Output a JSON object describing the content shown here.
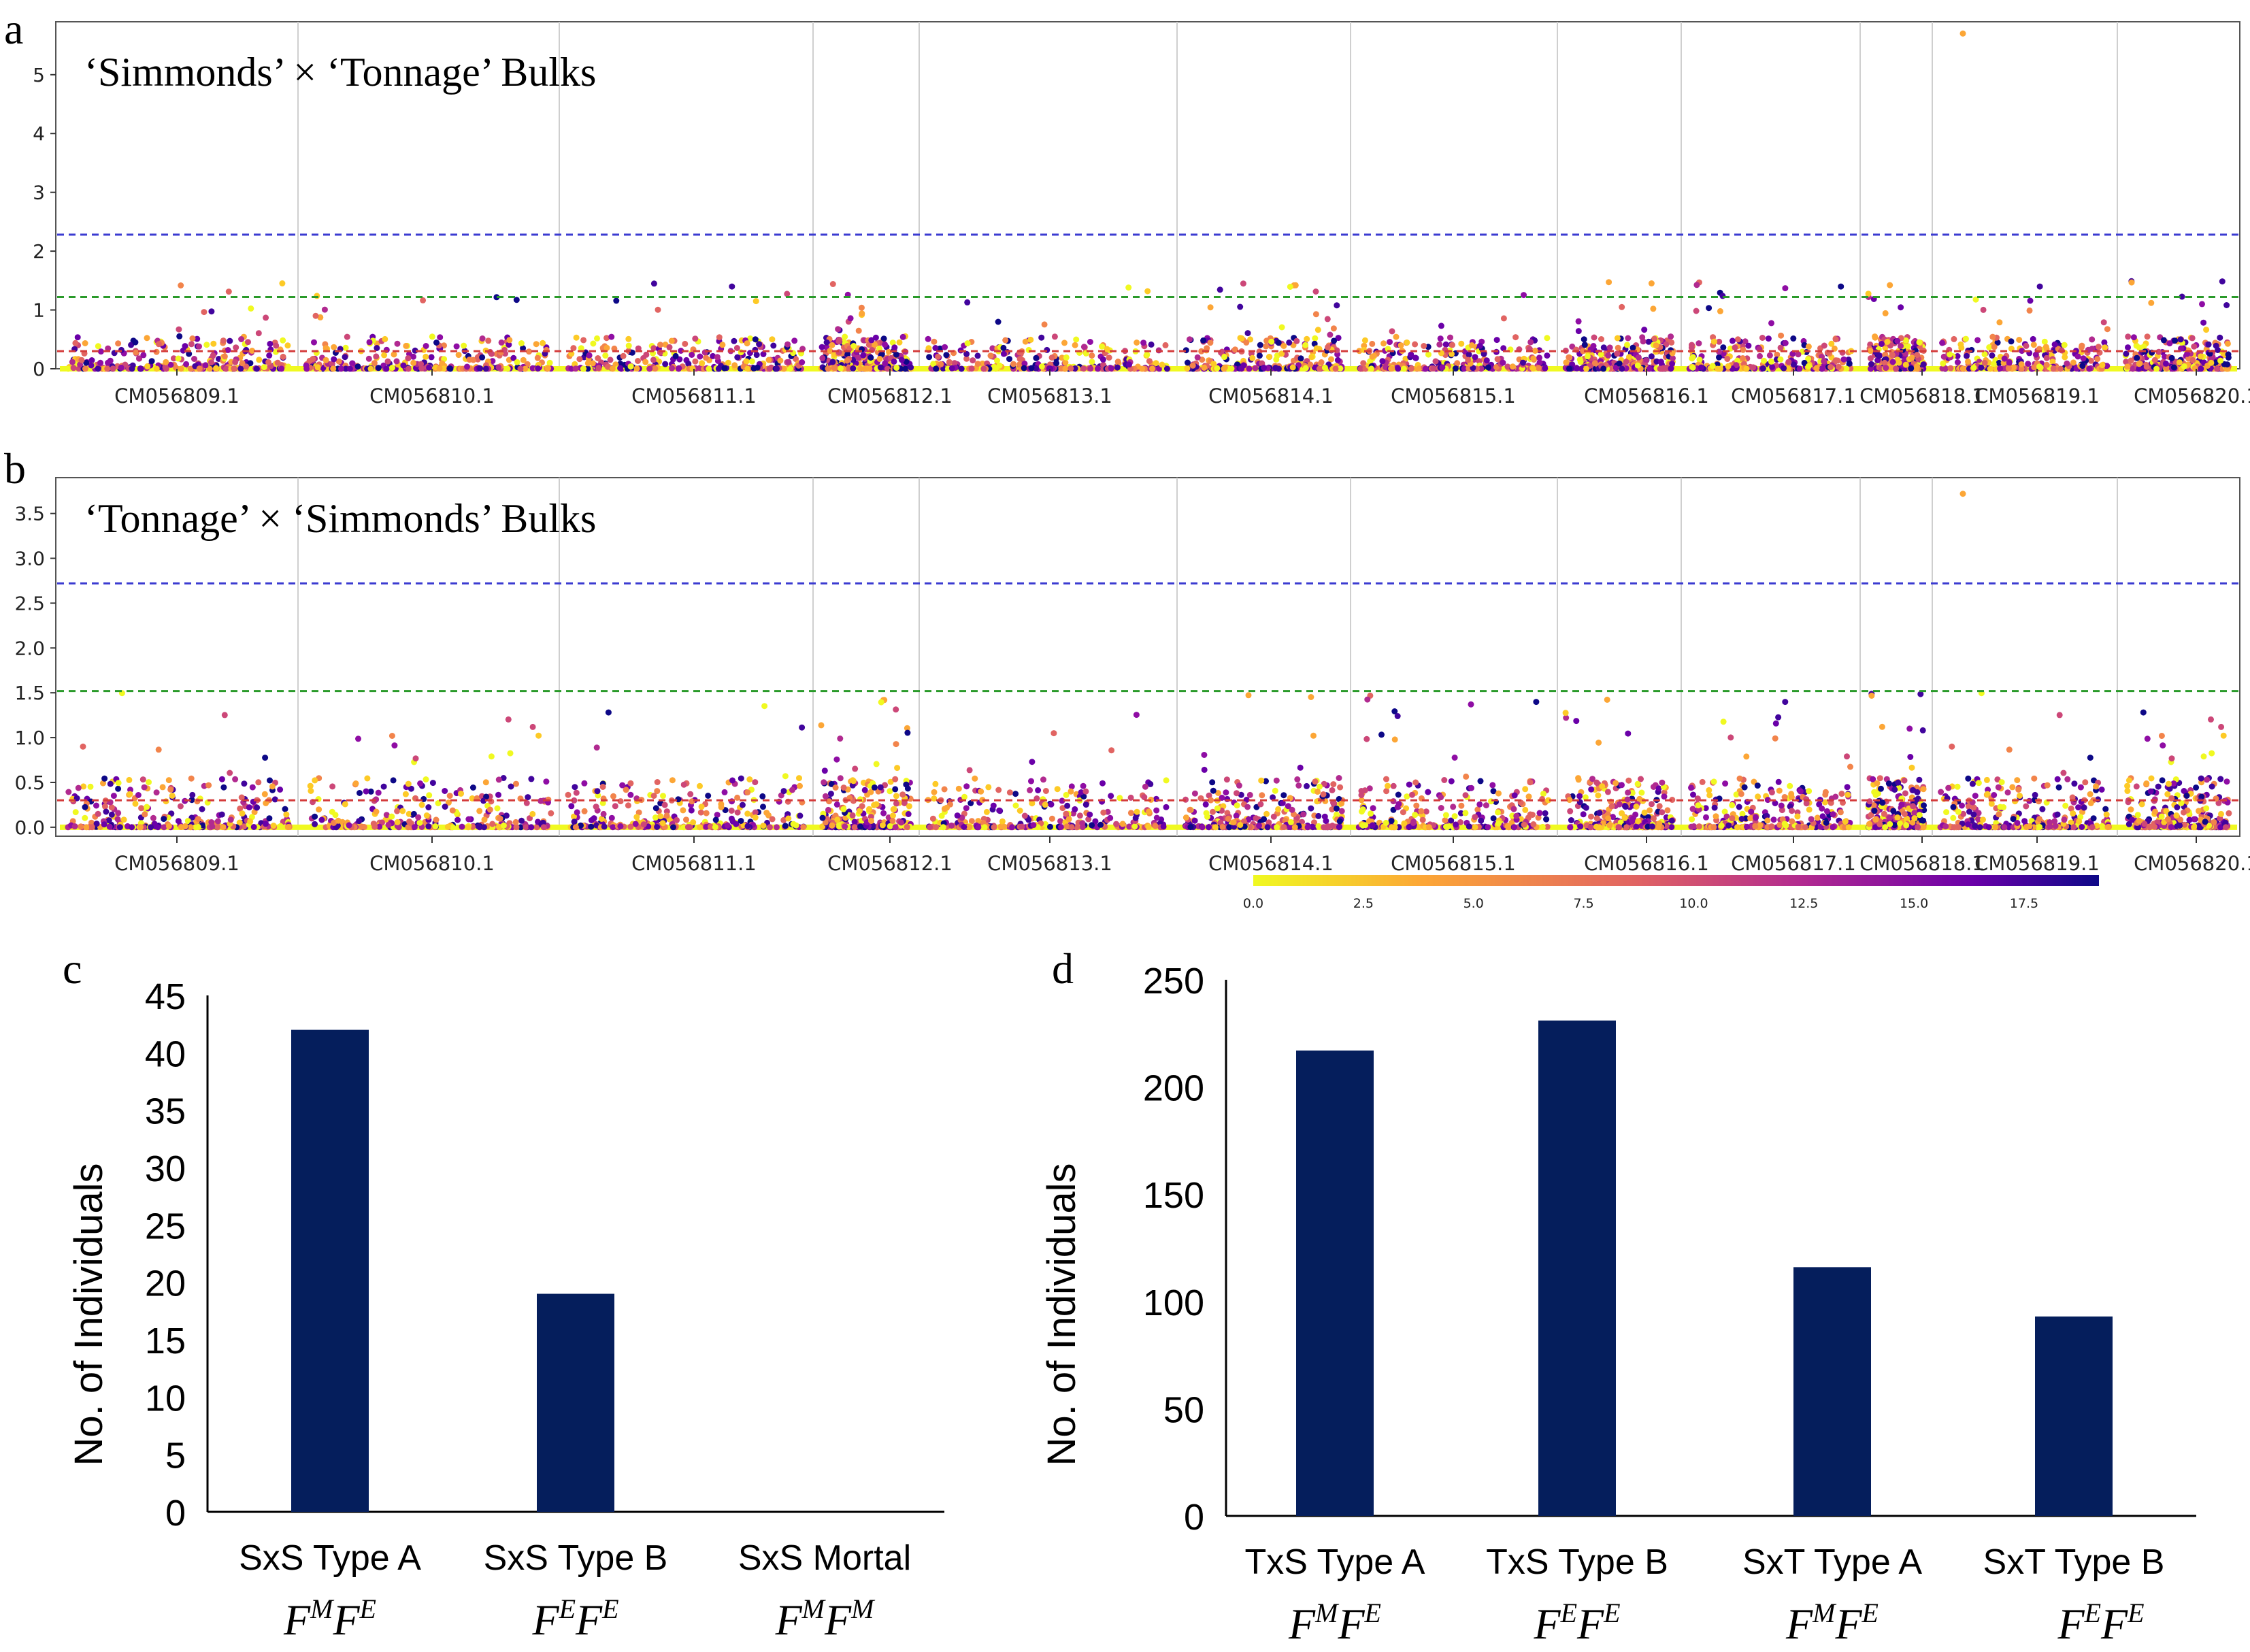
{
  "panels": {
    "a": {
      "letter": "a",
      "title": "‘Simmonds’ × ‘Tonnage’ Bulks",
      "chart_data": {
        "type": "scatter",
        "title": "‘Simmonds’ × ‘Tonnage’ Bulks",
        "ylim": [
          0,
          5.9
        ],
        "yticks": [
          0,
          1,
          2,
          3,
          4,
          5
        ],
        "categories": [
          "CM056809.1",
          "CM056810.1",
          "CM056811.1",
          "CM056812.1",
          "CM056813.1",
          "CM056814.1",
          "CM056815.1",
          "CM056816.1",
          "CM056817.1",
          "CM056818.1",
          "CM056819.1",
          "CM056820.1"
        ],
        "thresholds": [
          {
            "value": 2.28,
            "color": "#3b3bd1"
          },
          {
            "value": 1.22,
            "color": "#2a9a2a"
          },
          {
            "value": 0.3,
            "color": "#d43a3a"
          }
        ],
        "peak": {
          "chromosome": "CM056818.1",
          "max": 5.7
        },
        "grid": "vertical chromosome separators"
      }
    },
    "b": {
      "letter": "b",
      "title": "‘Tonnage’ × ‘Simmonds’ Bulks",
      "chart_data": {
        "type": "scatter",
        "title": "‘Tonnage’ × ‘Simmonds’ Bulks",
        "ylim": [
          -0.1,
          3.9
        ],
        "yticks": [
          "0.0",
          "0.5",
          "1.0",
          "1.5",
          "2.0",
          "2.5",
          "3.0",
          "3.5"
        ],
        "categories": [
          "CM056809.1",
          "CM056810.1",
          "CM056811.1",
          "CM056812.1",
          "CM056813.1",
          "CM056814.1",
          "CM056815.1",
          "CM056816.1",
          "CM056817.1",
          "CM056818.1",
          "CM056819.1",
          "CM056820.1"
        ],
        "thresholds": [
          {
            "value": 2.72,
            "color": "#3b3bd1"
          },
          {
            "value": 1.52,
            "color": "#2a9a2a"
          },
          {
            "value": 0.3,
            "color": "#d43a3a"
          }
        ],
        "peak": {
          "chromosome": "CM056818.1",
          "max": 3.72
        },
        "grid": "vertical chromosome separators"
      }
    },
    "colorbar": {
      "ticks": [
        "0.0",
        "2.5",
        "5.0",
        "7.5",
        "10.0",
        "12.5",
        "15.0",
        "17.5"
      ],
      "colors": [
        "#f0f921",
        "#fca636",
        "#e16462",
        "#b12a90",
        "#6a00a8",
        "#0d0887"
      ]
    },
    "c": {
      "letter": "c",
      "ylabel": "No. of Individuals",
      "chart_data": {
        "type": "bar",
        "categories": [
          "SxS Type A",
          "SxS Type B",
          "SxS Mortal"
        ],
        "values": [
          42,
          19,
          0
        ],
        "ylim": [
          0,
          45
        ],
        "yticks": [
          0,
          5,
          10,
          15,
          20,
          25,
          30,
          35,
          40,
          45
        ],
        "ylabel": "No. of Individuals",
        "bar_color": "#051e5c"
      },
      "genotypes": [
        {
          "a": "F",
          "sa": "M",
          "b": "F",
          "sb": "E"
        },
        {
          "a": "F",
          "sa": "E",
          "b": "F",
          "sb": "E"
        },
        {
          "a": "F",
          "sa": "M",
          "b": "F",
          "sb": "M"
        }
      ]
    },
    "d": {
      "letter": "d",
      "ylabel": "No. of Individuals",
      "chart_data": {
        "type": "bar",
        "categories": [
          "TxS Type A",
          "TxS Type B",
          "SxT Type A",
          "SxT Type B"
        ],
        "values": [
          217,
          231,
          116,
          93
        ],
        "ylim": [
          0,
          250
        ],
        "yticks": [
          0,
          50,
          100,
          150,
          200,
          250
        ],
        "ylabel": "No. of Individuals",
        "bar_color": "#051e5c"
      },
      "genotypes": [
        {
          "a": "F",
          "sa": "M",
          "b": "F",
          "sb": "E"
        },
        {
          "a": "F",
          "sa": "E",
          "b": "F",
          "sb": "E"
        },
        {
          "a": "F",
          "sa": "M",
          "b": "F",
          "sb": "E"
        },
        {
          "a": "F",
          "sa": "E",
          "b": "F",
          "sb": "E"
        }
      ]
    }
  }
}
